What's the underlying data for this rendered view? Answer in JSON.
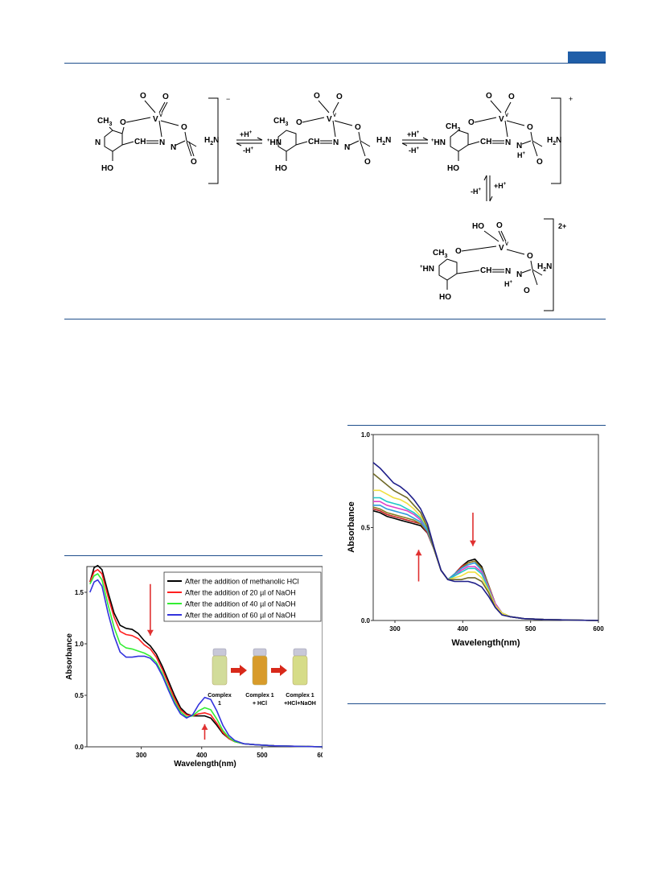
{
  "page": {
    "accent": "#1f5ea8",
    "rule_color": "#1f4e8c"
  },
  "scheme": {
    "structures": [
      {
        "charge": "−",
        "V": "V",
        "ox": "V",
        "O1": "O",
        "O2": "O",
        "CH3": "CH",
        "three": "3",
        "N": "N",
        "CH": "CH",
        "H2N": "H",
        "two": "2",
        "N_2": "N",
        "HO": "HO",
        "O_ring": "O",
        "O_carb": "O",
        "N_amide": "N"
      },
      {
        "charge": "",
        "NH": "HN"
      },
      {
        "charge": "+"
      },
      {
        "charge": "2+",
        "HO_V": "HO"
      }
    ],
    "arrows": [
      {
        "forward": "+H",
        "backward": "-H"
      },
      {
        "forward": "+H",
        "backward": "-H"
      },
      {
        "forward": "+H",
        "backward": "-H"
      }
    ],
    "plus": "+"
  },
  "chart_data": [
    {
      "type": "line",
      "xlabel": "Wavelength(nm)",
      "ylabel": "Absorbance",
      "xlim": [
        210,
        600
      ],
      "ylim": [
        0.0,
        1.75
      ],
      "xticks": [
        300,
        400,
        500,
        600
      ],
      "yticks": [
        "0.0",
        "0.5",
        "1.0",
        "1.5"
      ],
      "legend_position": "top-right",
      "series": [
        {
          "name": "After the addition of methanolic HCl",
          "color": "#000000",
          "x": [
            215,
            222,
            228,
            235,
            245,
            255,
            265,
            275,
            285,
            295,
            305,
            315,
            325,
            335,
            345,
            355,
            365,
            375,
            385,
            395,
            405,
            415,
            425,
            435,
            445,
            455,
            470,
            490,
            520,
            560,
            600
          ],
          "y": [
            1.6,
            1.74,
            1.76,
            1.72,
            1.5,
            1.3,
            1.18,
            1.15,
            1.14,
            1.1,
            1.03,
            0.98,
            0.9,
            0.78,
            0.64,
            0.5,
            0.38,
            0.32,
            0.3,
            0.3,
            0.3,
            0.28,
            0.21,
            0.13,
            0.08,
            0.05,
            0.03,
            0.02,
            0.01,
            0.005,
            0.0
          ]
        },
        {
          "name": "After the addition of 20 µl of NaOH",
          "color": "#ff2020",
          "x": [
            215,
            222,
            228,
            235,
            245,
            255,
            265,
            275,
            285,
            295,
            305,
            315,
            325,
            335,
            345,
            355,
            365,
            375,
            385,
            395,
            405,
            415,
            425,
            435,
            445,
            455,
            470,
            490,
            520,
            560,
            600
          ],
          "y": [
            1.6,
            1.7,
            1.72,
            1.68,
            1.46,
            1.26,
            1.12,
            1.09,
            1.08,
            1.05,
            0.99,
            0.95,
            0.87,
            0.75,
            0.61,
            0.47,
            0.36,
            0.31,
            0.3,
            0.32,
            0.33,
            0.31,
            0.23,
            0.14,
            0.08,
            0.05,
            0.03,
            0.02,
            0.01,
            0.005,
            0.0
          ]
        },
        {
          "name": "After the addition of 40 µl of NaOH",
          "color": "#33ee33",
          "x": [
            215,
            222,
            228,
            235,
            245,
            255,
            265,
            275,
            285,
            295,
            305,
            315,
            325,
            335,
            345,
            355,
            365,
            375,
            385,
            395,
            405,
            415,
            425,
            435,
            445,
            455,
            470,
            490,
            520,
            560,
            600
          ],
          "y": [
            1.58,
            1.66,
            1.68,
            1.62,
            1.38,
            1.16,
            1.0,
            0.96,
            0.95,
            0.93,
            0.91,
            0.88,
            0.82,
            0.71,
            0.57,
            0.44,
            0.34,
            0.29,
            0.3,
            0.35,
            0.38,
            0.36,
            0.27,
            0.16,
            0.09,
            0.05,
            0.03,
            0.02,
            0.01,
            0.005,
            0.0
          ]
        },
        {
          "name": "After the addition of 60 µl of NaOH",
          "color": "#3333dd",
          "x": [
            215,
            222,
            228,
            235,
            245,
            255,
            265,
            275,
            285,
            295,
            305,
            315,
            325,
            335,
            345,
            355,
            365,
            375,
            385,
            395,
            405,
            415,
            425,
            435,
            445,
            455,
            470,
            490,
            520,
            560,
            600
          ],
          "y": [
            1.5,
            1.6,
            1.62,
            1.56,
            1.3,
            1.08,
            0.92,
            0.87,
            0.87,
            0.88,
            0.88,
            0.86,
            0.8,
            0.69,
            0.55,
            0.42,
            0.32,
            0.28,
            0.31,
            0.41,
            0.48,
            0.46,
            0.35,
            0.21,
            0.11,
            0.06,
            0.03,
            0.02,
            0.01,
            0.005,
            0.0
          ]
        }
      ],
      "annotations": [
        {
          "type": "arrow-down",
          "color": "#e03030",
          "x": 315,
          "y_from": 1.58,
          "y_to": 1.08
        },
        {
          "type": "arrow-up",
          "color": "#e03030",
          "x": 405,
          "y_from": 0.07,
          "y_to": 0.22
        }
      ],
      "inset": {
        "vials": [
          {
            "label_lines": [
              "Complex",
              "1"
            ],
            "color": "#d2dc9a"
          },
          {
            "label_lines": [
              "Complex 1",
              "+ HCl"
            ],
            "color": "#d89b2a"
          },
          {
            "label_lines": [
              "Complex 1",
              "+HCl+NaOH"
            ],
            "color": "#d6dc88"
          }
        ],
        "arrow_color": "#d8291a"
      }
    },
    {
      "type": "line",
      "xlabel": "Wavelength(nm)",
      "ylabel": "Absorbance",
      "xlim": [
        268,
        600
      ],
      "ylim": [
        0.0,
        1.0
      ],
      "xticks": [
        300,
        400,
        500,
        600
      ],
      "yticks": [
        "0.0",
        "0.5",
        "1.0"
      ],
      "series_x": [
        268,
        278,
        288,
        298,
        308,
        318,
        328,
        338,
        348,
        358,
        368,
        378,
        388,
        398,
        408,
        418,
        428,
        438,
        448,
        458,
        470,
        490,
        520,
        560,
        600
      ],
      "series": [
        {
          "color": "#000000",
          "y": [
            0.59,
            0.58,
            0.56,
            0.55,
            0.54,
            0.53,
            0.52,
            0.51,
            0.47,
            0.38,
            0.27,
            0.22,
            0.25,
            0.29,
            0.32,
            0.33,
            0.29,
            0.19,
            0.09,
            0.04,
            0.02,
            0.01,
            0.005,
            0.002,
            0.0
          ]
        },
        {
          "color": "#c62020",
          "y": [
            0.6,
            0.59,
            0.57,
            0.56,
            0.55,
            0.54,
            0.53,
            0.52,
            0.47,
            0.38,
            0.27,
            0.22,
            0.25,
            0.29,
            0.31,
            0.32,
            0.28,
            0.19,
            0.09,
            0.04,
            0.02,
            0.01,
            0.005,
            0.002,
            0.0
          ]
        },
        {
          "color": "#8a7a20",
          "y": [
            0.61,
            0.6,
            0.58,
            0.57,
            0.56,
            0.55,
            0.54,
            0.52,
            0.48,
            0.38,
            0.27,
            0.22,
            0.25,
            0.28,
            0.31,
            0.32,
            0.28,
            0.19,
            0.09,
            0.04,
            0.02,
            0.01,
            0.005,
            0.002,
            0.0
          ]
        },
        {
          "color": "#2e9cdc",
          "y": [
            0.62,
            0.62,
            0.6,
            0.59,
            0.58,
            0.57,
            0.55,
            0.53,
            0.48,
            0.38,
            0.27,
            0.22,
            0.25,
            0.28,
            0.3,
            0.31,
            0.27,
            0.18,
            0.09,
            0.04,
            0.02,
            0.01,
            0.005,
            0.002,
            0.0
          ]
        },
        {
          "color": "#e040c8",
          "y": [
            0.64,
            0.64,
            0.62,
            0.61,
            0.6,
            0.59,
            0.57,
            0.54,
            0.49,
            0.38,
            0.27,
            0.22,
            0.24,
            0.27,
            0.29,
            0.29,
            0.26,
            0.18,
            0.09,
            0.04,
            0.02,
            0.01,
            0.005,
            0.002,
            0.0
          ]
        },
        {
          "color": "#20c8c8",
          "y": [
            0.66,
            0.66,
            0.64,
            0.63,
            0.62,
            0.6,
            0.58,
            0.55,
            0.49,
            0.38,
            0.27,
            0.22,
            0.24,
            0.26,
            0.28,
            0.28,
            0.25,
            0.17,
            0.08,
            0.04,
            0.02,
            0.01,
            0.005,
            0.002,
            0.0
          ]
        },
        {
          "color": "#f0e040",
          "y": [
            0.7,
            0.7,
            0.68,
            0.66,
            0.65,
            0.63,
            0.6,
            0.56,
            0.5,
            0.38,
            0.27,
            0.22,
            0.23,
            0.24,
            0.26,
            0.26,
            0.23,
            0.16,
            0.08,
            0.04,
            0.02,
            0.01,
            0.005,
            0.002,
            0.0
          ]
        },
        {
          "color": "#706a28",
          "y": [
            0.79,
            0.76,
            0.73,
            0.7,
            0.68,
            0.66,
            0.62,
            0.58,
            0.5,
            0.38,
            0.27,
            0.22,
            0.22,
            0.22,
            0.23,
            0.23,
            0.21,
            0.15,
            0.07,
            0.03,
            0.02,
            0.01,
            0.005,
            0.002,
            0.0
          ]
        },
        {
          "color": "#1f1f8a",
          "y": [
            0.85,
            0.82,
            0.78,
            0.74,
            0.72,
            0.69,
            0.65,
            0.6,
            0.52,
            0.39,
            0.27,
            0.22,
            0.21,
            0.21,
            0.21,
            0.2,
            0.18,
            0.13,
            0.07,
            0.03,
            0.02,
            0.01,
            0.005,
            0.002,
            0.0
          ]
        }
      ],
      "annotations": [
        {
          "type": "arrow-down",
          "color": "#e03030",
          "x": 415,
          "y_from": 0.58,
          "y_to": 0.4
        },
        {
          "type": "arrow-up",
          "color": "#e03030",
          "x": 335,
          "y_from": 0.21,
          "y_to": 0.38
        }
      ]
    }
  ]
}
